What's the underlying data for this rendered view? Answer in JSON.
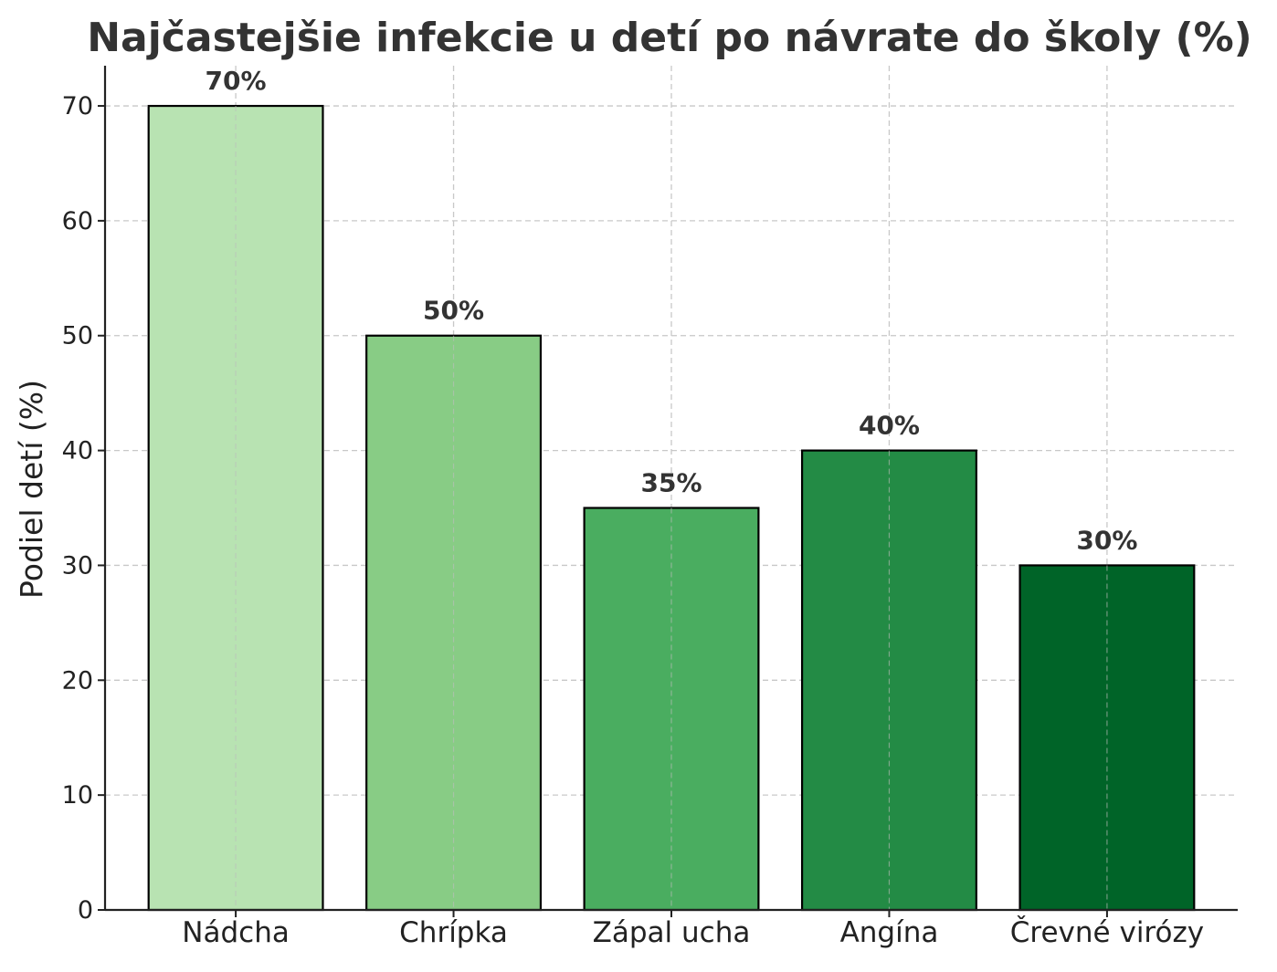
{
  "chart_data": {
    "type": "bar",
    "title": "Najčastejšie infekcie u detí po návrate do školy (%)",
    "xlabel": "",
    "ylabel": "Podiel detí (%)",
    "categories": [
      "Nádcha",
      "Chrípka",
      "Zápal ucha",
      "Angína",
      "Črevné virózy"
    ],
    "values": [
      70,
      50,
      35,
      40,
      30
    ],
    "data_labels": [
      "70%",
      "50%",
      "35%",
      "40%",
      "30%"
    ],
    "bar_colors": [
      "#b8e3b2",
      "#88cc85",
      "#4aad60",
      "#238b45",
      "#006428"
    ],
    "ylim": [
      0,
      73.5
    ],
    "yticks": [
      0,
      10,
      20,
      30,
      40,
      50,
      60,
      70
    ],
    "grid": true,
    "legend": "none"
  }
}
